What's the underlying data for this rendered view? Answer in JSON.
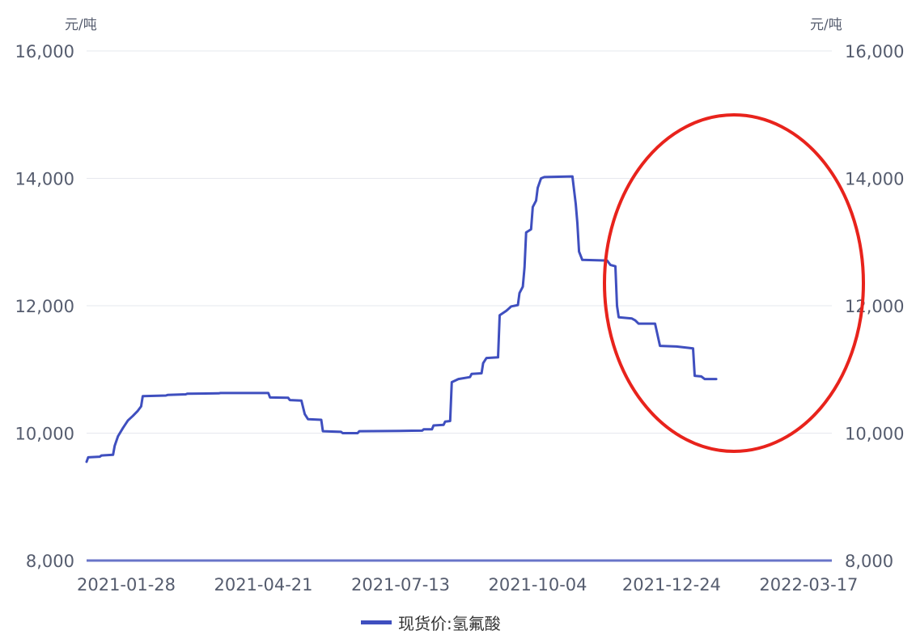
{
  "chart_data": {
    "type": "line",
    "y_unit_left": "元/吨",
    "y_unit_right": "元/吨",
    "ylim": [
      8000,
      16000
    ],
    "y_ticks": [
      8000,
      10000,
      12000,
      14000,
      16000
    ],
    "y_tick_labels": [
      "8,000",
      "10,000",
      "12,000",
      "14,000",
      "16,000"
    ],
    "x_range": [
      "2021-01-04",
      "2022-03-31"
    ],
    "x_ticks": [
      "2021-01-28",
      "2021-04-21",
      "2021-07-13",
      "2021-10-04",
      "2021-12-24",
      "2022-03-17"
    ],
    "grid": true,
    "legend_position": "bottom-center",
    "annotation": "red ellipse highlighting the price decline from Nov 2021 to Mar 2022",
    "series": [
      {
        "name": "现货价:氢氟酸",
        "color": "#3f4fbf",
        "points": [
          [
            "2021-01-04",
            9550
          ],
          [
            "2021-01-05",
            9620
          ],
          [
            "2021-01-12",
            9630
          ],
          [
            "2021-01-13",
            9650
          ],
          [
            "2021-01-20",
            9660
          ],
          [
            "2021-01-21",
            9800
          ],
          [
            "2021-01-23",
            9950
          ],
          [
            "2021-01-26",
            10080
          ],
          [
            "2021-01-29",
            10200
          ],
          [
            "2021-02-01",
            10270
          ],
          [
            "2021-02-04",
            10350
          ],
          [
            "2021-02-06",
            10420
          ],
          [
            "2021-02-07",
            10580
          ],
          [
            "2021-02-21",
            10590
          ],
          [
            "2021-02-22",
            10600
          ],
          [
            "2021-03-05",
            10610
          ],
          [
            "2021-03-06",
            10620
          ],
          [
            "2021-03-25",
            10625
          ],
          [
            "2021-03-26",
            10630
          ],
          [
            "2021-04-24",
            10630
          ],
          [
            "2021-04-25",
            10560
          ],
          [
            "2021-05-06",
            10555
          ],
          [
            "2021-05-07",
            10520
          ],
          [
            "2021-05-14",
            10510
          ],
          [
            "2021-05-16",
            10300
          ],
          [
            "2021-05-18",
            10220
          ],
          [
            "2021-05-26",
            10210
          ],
          [
            "2021-05-27",
            10030
          ],
          [
            "2021-06-07",
            10020
          ],
          [
            "2021-06-08",
            10000
          ],
          [
            "2021-06-17",
            10000
          ],
          [
            "2021-06-18",
            10030
          ],
          [
            "2021-07-12",
            10035
          ],
          [
            "2021-07-26",
            10040
          ],
          [
            "2021-07-27",
            10060
          ],
          [
            "2021-08-01",
            10060
          ],
          [
            "2021-08-02",
            10120
          ],
          [
            "2021-08-08",
            10130
          ],
          [
            "2021-08-09",
            10180
          ],
          [
            "2021-08-12",
            10190
          ],
          [
            "2021-08-13",
            10800
          ],
          [
            "2021-08-17",
            10850
          ],
          [
            "2021-08-24",
            10880
          ],
          [
            "2021-08-25",
            10930
          ],
          [
            "2021-08-31",
            10940
          ],
          [
            "2021-09-01",
            11100
          ],
          [
            "2021-09-03",
            11180
          ],
          [
            "2021-09-10",
            11190
          ],
          [
            "2021-09-11",
            11850
          ],
          [
            "2021-09-15",
            11920
          ],
          [
            "2021-09-18",
            11990
          ],
          [
            "2021-09-22",
            12010
          ],
          [
            "2021-09-23",
            12200
          ],
          [
            "2021-09-25",
            12300
          ],
          [
            "2021-09-26",
            12600
          ],
          [
            "2021-09-27",
            13150
          ],
          [
            "2021-09-30",
            13200
          ],
          [
            "2021-10-01",
            13550
          ],
          [
            "2021-10-03",
            13650
          ],
          [
            "2021-10-04",
            13850
          ],
          [
            "2021-10-06",
            14000
          ],
          [
            "2021-10-08",
            14020
          ],
          [
            "2021-10-25",
            14030
          ],
          [
            "2021-10-27",
            13600
          ],
          [
            "2021-10-28",
            13300
          ],
          [
            "2021-10-29",
            12850
          ],
          [
            "2021-10-31",
            12720
          ],
          [
            "2021-11-15",
            12710
          ],
          [
            "2021-11-17",
            12640
          ],
          [
            "2021-11-20",
            12620
          ],
          [
            "2021-11-21",
            12000
          ],
          [
            "2021-11-22",
            11820
          ],
          [
            "2021-11-30",
            11800
          ],
          [
            "2021-12-02",
            11770
          ],
          [
            "2021-12-04",
            11720
          ],
          [
            "2021-12-14",
            11720
          ],
          [
            "2021-12-17",
            11370
          ],
          [
            "2021-12-27",
            11360
          ],
          [
            "2022-01-03",
            11340
          ],
          [
            "2022-01-06",
            11330
          ],
          [
            "2022-01-07",
            10900
          ],
          [
            "2022-01-11",
            10890
          ],
          [
            "2022-01-13",
            10850
          ],
          [
            "2022-01-20",
            10850
          ]
        ]
      }
    ]
  }
}
